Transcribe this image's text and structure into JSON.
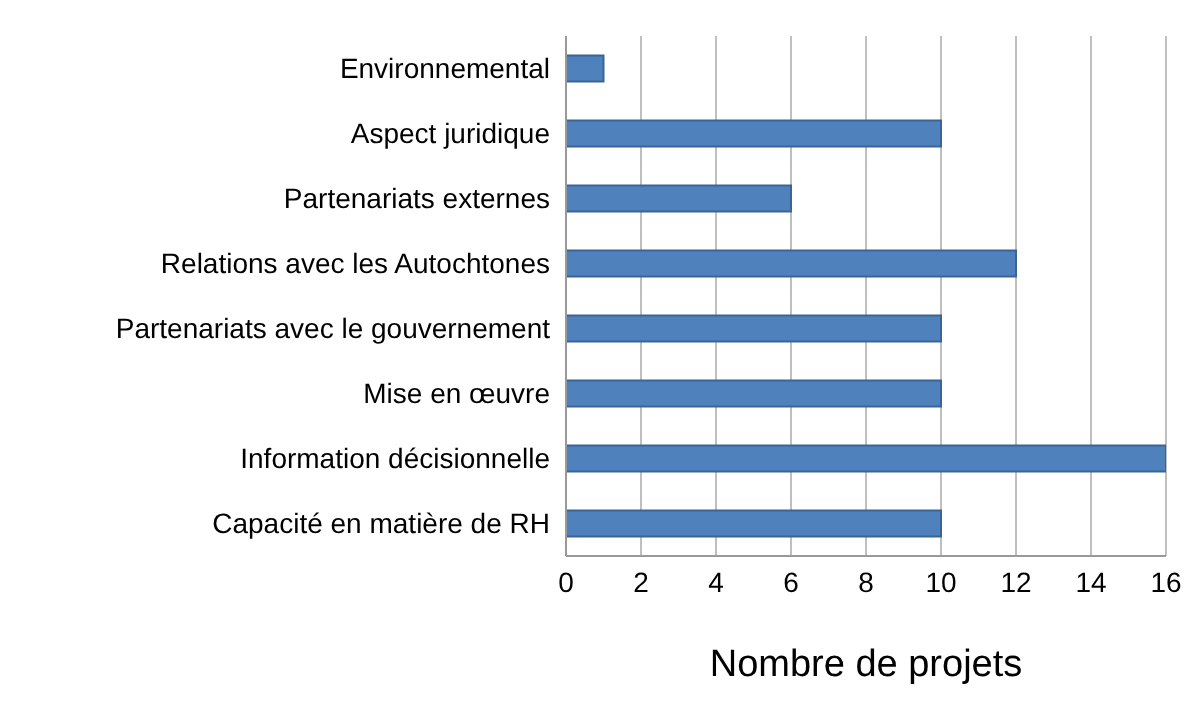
{
  "chart_data": {
    "type": "bar",
    "orientation": "horizontal",
    "xlabel": "Nombre de projets",
    "categories": [
      "Environnemental",
      "Aspect juridique",
      "Partenariats externes",
      "Relations avec les Autochtones",
      "Partenariats avec le gouvernement",
      "Mise en œuvre",
      "Information décisionnelle",
      "Capacité en matière de RH"
    ],
    "values": [
      1,
      10,
      6,
      12,
      10,
      10,
      16,
      10
    ],
    "color": "#4f81bd",
    "xlim": [
      0,
      16
    ],
    "xticks": [
      0,
      2,
      4,
      6,
      8,
      10,
      12,
      14,
      16
    ],
    "grid": "x"
  }
}
